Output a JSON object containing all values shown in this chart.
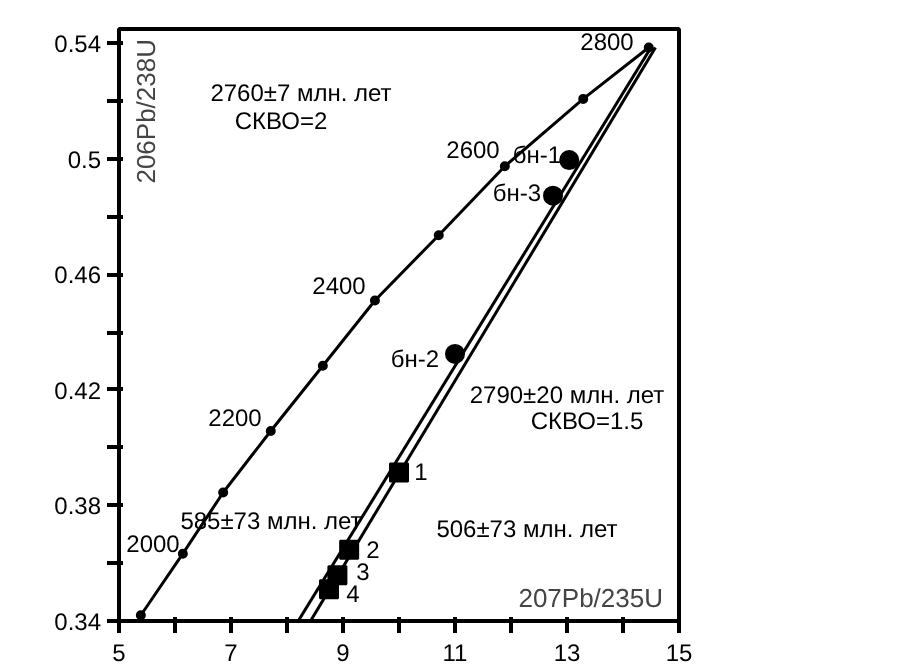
{
  "chart_data": {
    "type": "line",
    "xlabel": "207Pb/235U",
    "ylabel": "206Pb/238U",
    "xlim": [
      5,
      15
    ],
    "ylim": [
      0.34,
      0.545
    ],
    "xticks": [
      5,
      {
        "value": 6,
        "label": null
      },
      7,
      {
        "value": 8,
        "label": null
      },
      9,
      {
        "value": 10,
        "label": null
      },
      11,
      {
        "value": 12,
        "label": null
      },
      13,
      {
        "value": 14,
        "label": null
      },
      15
    ],
    "yticks": [
      0.34,
      {
        "value": 0.36,
        "label": null
      },
      0.38,
      {
        "value": 0.4,
        "label": null
      },
      0.42,
      {
        "value": 0.44,
        "label": null
      },
      0.46,
      {
        "value": 0.48,
        "label": null
      },
      0.5,
      {
        "value": 0.52,
        "label": null
      },
      0.54
    ],
    "grid": false,
    "series": [
      {
        "color": "#000000",
        "marker": "circle",
        "x": [
          5.39,
          6.14,
          6.86,
          7.71,
          8.64,
          9.57,
          10.71,
          11.89,
          13.29,
          14.46
        ],
        "values": [
          0.342,
          0.3633,
          0.3845,
          0.4058,
          0.4284,
          0.451,
          0.4736,
          0.4975,
          0.5208,
          0.5386
        ]
      },
      {
        "type": "line",
        "color": "#000000",
        "marker": "none",
        "x": [
          8.2,
          14.5
        ],
        "values": [
          0.34,
          0.5386
        ]
      },
      {
        "type": "line",
        "color": "#000000",
        "marker": "none",
        "x": [
          8.42,
          14.58
        ],
        "values": [
          0.34,
          0.5386
        ]
      },
      {
        "type": "scatter",
        "color": "#000000",
        "marker": "square",
        "x": [
          10.0,
          9.11,
          8.9,
          8.75
        ],
        "values": [
          0.3914,
          0.3647,
          0.3558,
          0.351
        ]
      },
      {
        "type": "scatter",
        "color": "#000000",
        "marker": "circle",
        "x": [
          13.04,
          12.75,
          11.0
        ],
        "values": [
          0.4996,
          0.4873,
          0.4325
        ]
      }
    ],
    "annotations": [
      "2760±7 млн. лет",
      "СКВО=2",
      "2790±20 млн. лет",
      "СКВО=1.5",
      "585±73 млн. лет",
      "506±73 млн. лет",
      "2000",
      "2200",
      "2400",
      "2600",
      "2800",
      "бн-1",
      "бн-3",
      "бн-2",
      "1",
      "2",
      "3",
      "4"
    ]
  }
}
